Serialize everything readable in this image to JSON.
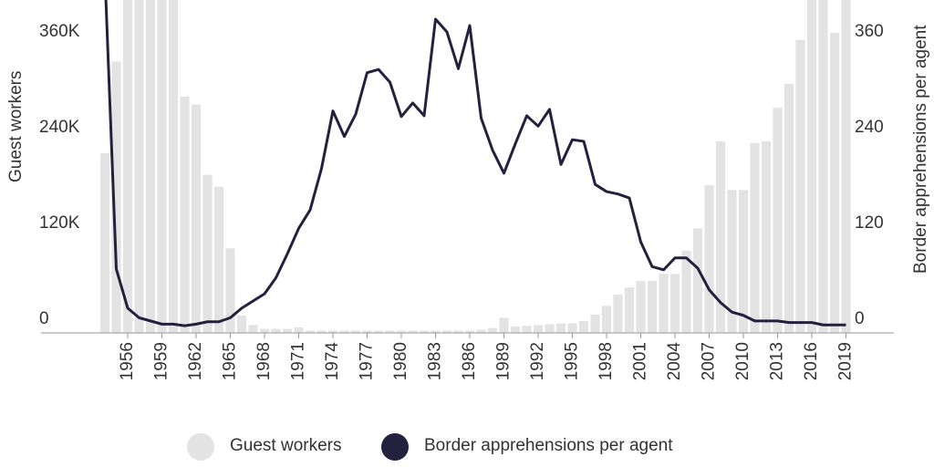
{
  "chart_data": {
    "type": "bar",
    "x": [
      1954,
      1955,
      1956,
      1957,
      1958,
      1959,
      1960,
      1961,
      1962,
      1963,
      1964,
      1965,
      1966,
      1967,
      1968,
      1969,
      1970,
      1971,
      1972,
      1973,
      1974,
      1975,
      1976,
      1977,
      1978,
      1979,
      1980,
      1981,
      1982,
      1983,
      1984,
      1985,
      1986,
      1987,
      1988,
      1989,
      1990,
      1991,
      1992,
      1993,
      1994,
      1995,
      1996,
      1997,
      1998,
      1999,
      2000,
      2001,
      2002,
      2003,
      2004,
      2005,
      2006,
      2007,
      2008,
      2009,
      2010,
      2011,
      2012,
      2013,
      2014,
      2015,
      2016,
      2017,
      2018,
      2019
    ],
    "series": [
      {
        "name": "Guest workers",
        "type": "bar",
        "color": "#e3e3e3",
        "values": [
          225000,
          340000,
          445000,
          436000,
          432000,
          437000,
          430000,
          296000,
          286000,
          198000,
          183000,
          106000,
          22000,
          10000,
          5000,
          5000,
          5000,
          7000,
          3000,
          3000,
          3000,
          3000,
          3000,
          3000,
          3000,
          3000,
          3000,
          3000,
          3000,
          3000,
          3000,
          3000,
          3000,
          4000,
          6000,
          19000,
          8000,
          9000,
          10000,
          11000,
          12000,
          12000,
          15000,
          23000,
          34000,
          48000,
          57000,
          65000,
          65000,
          74000,
          74000,
          103000,
          131000,
          185000,
          240000,
          179000,
          179000,
          238000,
          240000,
          282000,
          312000,
          367000,
          420000,
          440000,
          376000,
          440000
        ]
      },
      {
        "name": "Border apprehensions per agent",
        "type": "line",
        "axis": "y2",
        "color": "#24213f",
        "values": [
          450,
          80,
          31,
          19,
          15,
          11,
          11,
          9,
          11,
          14,
          14,
          19,
          31,
          40,
          49,
          69,
          99,
          131,
          154,
          206,
          278,
          246,
          274,
          326,
          330,
          314,
          271,
          288,
          272,
          393,
          377,
          331,
          385,
          269,
          229,
          200,
          237,
          272,
          259,
          280,
          211,
          242,
          240,
          186,
          177,
          174,
          169,
          114,
          83,
          79,
          94,
          94,
          81,
          54,
          38,
          26,
          22,
          15,
          15,
          15,
          13,
          13,
          13,
          10,
          10,
          10
        ]
      }
    ],
    "xlim": [
      1948.4,
      2023.2
    ],
    "xticks": [
      1956,
      1959,
      1962,
      1965,
      1968,
      1971,
      1974,
      1977,
      1980,
      1983,
      1986,
      1989,
      1992,
      1995,
      1998,
      2001,
      2004,
      2007,
      2010,
      2013,
      2016,
      2019
    ],
    "ylim": [
      0,
      417000
    ],
    "yticks": [
      0,
      {
        "value": 120000,
        "label": "120K"
      },
      {
        "value": 240000,
        "label": "240K"
      },
      {
        "value": 360000,
        "label": "360K"
      }
    ],
    "y2lim": [
      0,
      417
    ],
    "y2ticks": [
      0,
      120,
      240,
      360
    ],
    "ylabel": "Guest workers",
    "y2label": "Border apprehensions per agent"
  }
}
